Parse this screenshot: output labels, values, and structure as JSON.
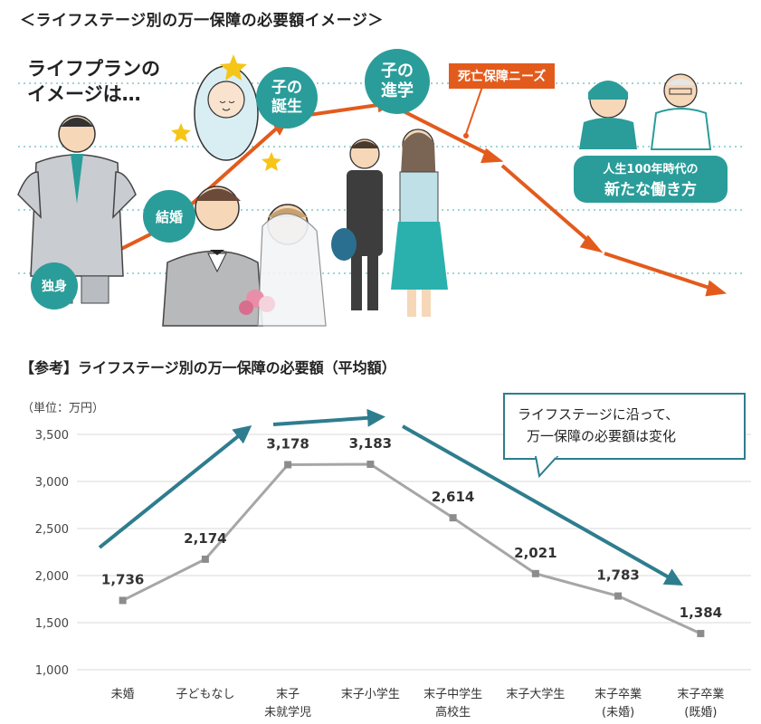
{
  "heading": "＜ライフステージ別の万一保障の必要額イメージ＞",
  "intro": {
    "line1": "ライフプランの",
    "line2": "イメージは…"
  },
  "stages": {
    "single": "独身",
    "marriage": "結婚",
    "birth_1": "子の",
    "birth_2": "誕生",
    "school_1": "子の",
    "school_2": "進学"
  },
  "needs_label": "死亡保障ニーズ",
  "work_box": {
    "line1": "人生100年時代の",
    "line2": "新たな働き方"
  },
  "chart_heading": "【参考】ライフステージ別の万一保障の必要額（平均額）",
  "callout": {
    "line1": "ライフステージに沿って、",
    "line2": "万一保障の必要額は変化"
  },
  "colors": {
    "teal": "#2a9d9a",
    "orange": "#e35b1c",
    "trend_arrow": "#2e7d8f",
    "line": "#a6a6a6",
    "marker": "#8c8c8c"
  },
  "chart_data": {
    "type": "line",
    "unit_label": "（単位：万円）",
    "categories": [
      [
        "未婚"
      ],
      [
        "子どもなし"
      ],
      [
        "末子",
        "未就学児"
      ],
      [
        "末子小学生"
      ],
      [
        "末子中学生",
        "高校生"
      ],
      [
        "末子大学生"
      ],
      [
        "末子卒業",
        "(未婚)"
      ],
      [
        "末子卒業",
        "(既婚)"
      ]
    ],
    "values": [
      1736,
      2174,
      3178,
      3183,
      2614,
      2021,
      1783,
      1384
    ],
    "value_labels": [
      "1,736",
      "2,174",
      "3,178",
      "3,183",
      "2,614",
      "2,021",
      "1,783",
      "1,384"
    ],
    "ylim": [
      1000,
      3500
    ],
    "yticks": [
      1000,
      1500,
      2000,
      2500,
      3000,
      3500
    ],
    "ytick_labels": [
      "1,000",
      "1,500",
      "2,000",
      "2,500",
      "3,000",
      "3,500"
    ],
    "grid": true
  }
}
